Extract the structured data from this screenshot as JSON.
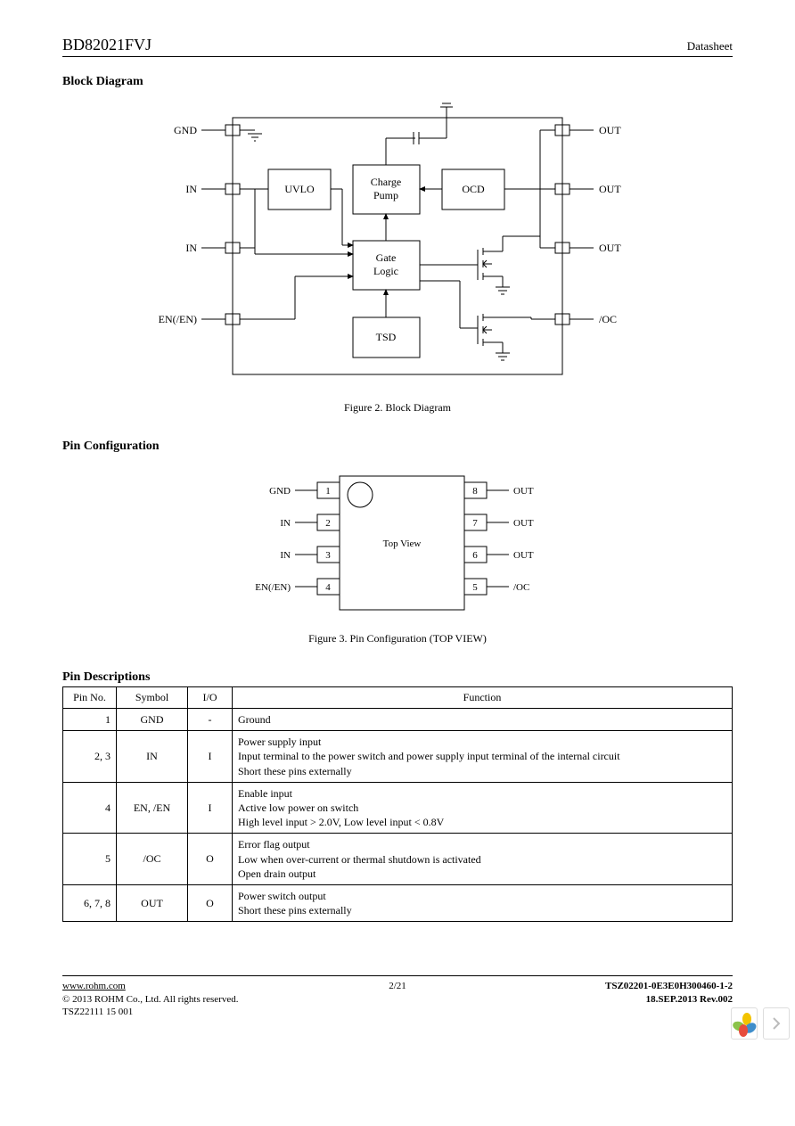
{
  "header": {
    "part_number": "BD82021FVJ",
    "doc_type": "Datasheet"
  },
  "sections": {
    "block_diagram": "Block Diagram",
    "pin_config": "Pin Configuration",
    "pin_desc": "Pin Descriptions"
  },
  "captions": {
    "fig2": "Figure 2. Block Diagram",
    "fig3": "Figure 3. Pin Configuration (TOP VIEW)"
  },
  "block_diagram": {
    "boxes": {
      "uvlo": "UVLO",
      "charge_pump_l1": "Charge",
      "charge_pump_l2": "Pump",
      "ocd": "OCD",
      "gate_logic_l1": "Gate",
      "gate_logic_l2": "Logic",
      "tsd": "TSD"
    },
    "left_pins": [
      "GND",
      "IN",
      "IN",
      "EN(/EN)"
    ],
    "right_pins": [
      "OUT",
      "OUT",
      "OUT",
      "/OC"
    ],
    "colors": {
      "stroke": "#000000",
      "bg": "#ffffff"
    }
  },
  "pin_config": {
    "top_view": "Top View",
    "left": [
      {
        "num": "1",
        "name": "GND"
      },
      {
        "num": "2",
        "name": "IN"
      },
      {
        "num": "3",
        "name": "IN"
      },
      {
        "num": "4",
        "name": "EN(/EN)"
      }
    ],
    "right": [
      {
        "num": "8",
        "name": "OUT"
      },
      {
        "num": "7",
        "name": "OUT"
      },
      {
        "num": "6",
        "name": "OUT"
      },
      {
        "num": "5",
        "name": "/OC"
      }
    ]
  },
  "pin_table": {
    "headers": [
      "Pin No.",
      "Symbol",
      "I/O",
      "Function"
    ],
    "rows": [
      {
        "pin": "1",
        "sym": "GND",
        "io": "-",
        "func": "Ground"
      },
      {
        "pin": "2, 3",
        "sym": "IN",
        "io": "I",
        "func": "Power supply input\nInput terminal to the power switch and power supply input terminal of the internal circuit\nShort these pins externally"
      },
      {
        "pin": "4",
        "sym": "EN,       /EN",
        "io": "I",
        "func": "Enable input\nActive low power on switch\nHigh level input > 2.0V, Low level input < 0.8V"
      },
      {
        "pin": "5",
        "sym": "/OC",
        "io": "O",
        "func": "Error flag output\nLow when over-current or thermal shutdown is activated\nOpen drain output"
      },
      {
        "pin": "6, 7, 8",
        "sym": "OUT",
        "io": "O",
        "func": "Power switch output\nShort these pins externally"
      }
    ]
  },
  "footer": {
    "url": "www.rohm.com",
    "copyright": "© 2013 ROHM Co., Ltd. All rights reserved.",
    "tsz_small": "TSZ22111    15    001",
    "page": "2/21",
    "doc_code": "TSZ02201-0E3E0H300460-1-2",
    "date_rev": "18.SEP.2013 Rev.002"
  },
  "nav_widget": {
    "petal_colors": [
      "#f2c300",
      "#8bc34a",
      "#3f8ecb",
      "#e74c3c"
    ],
    "chevron_color": "#bbbbbb"
  }
}
